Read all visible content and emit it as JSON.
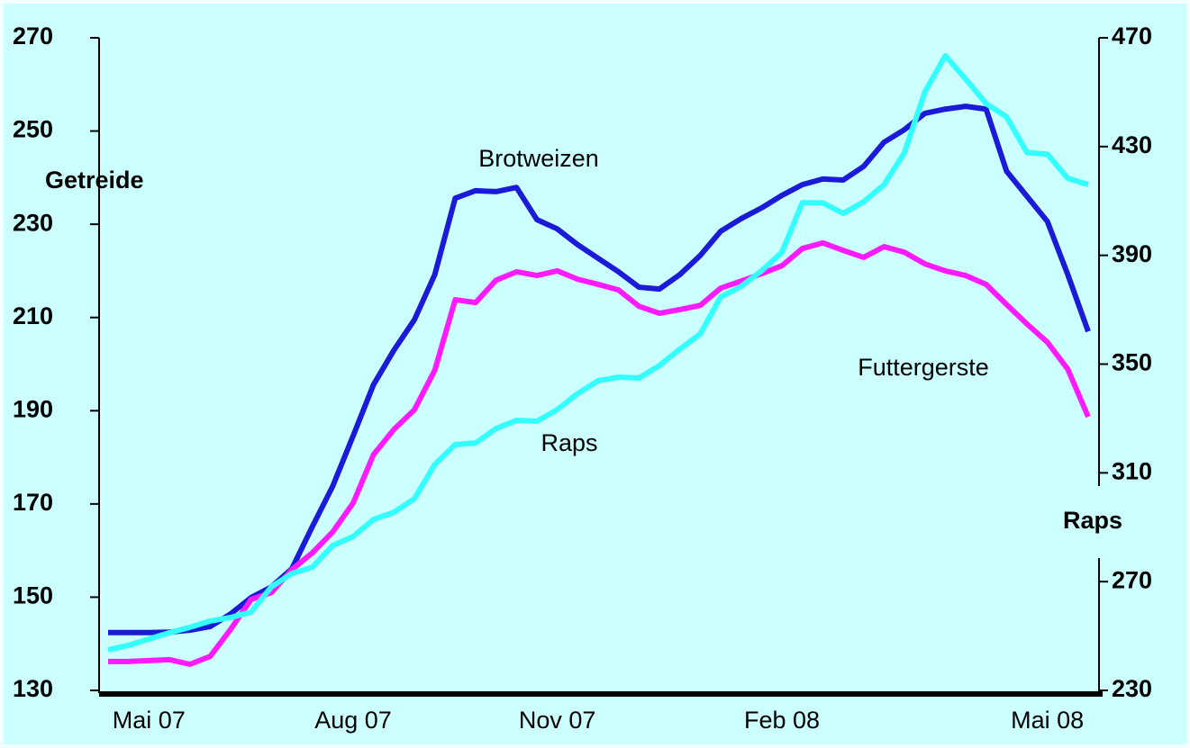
{
  "chart_data": {
    "type": "line",
    "y_label": "Getreide",
    "y2_label": "Raps",
    "categories": [
      null,
      null,
      "Mai 07",
      null,
      null,
      null,
      null,
      null,
      null,
      null,
      null,
      null,
      "Aug 07",
      null,
      null,
      null,
      null,
      null,
      null,
      null,
      null,
      null,
      "Nov 07",
      null,
      null,
      null,
      null,
      null,
      null,
      null,
      null,
      null,
      null,
      "Feb 08",
      null,
      null,
      null,
      null,
      null,
      null,
      null,
      null,
      null,
      null,
      null,
      null,
      "Mai 08",
      null,
      null
    ],
    "series": [
      {
        "name": "Brotweizen",
        "color": "#1a1ad8",
        "values": [
          142.4,
          142.4,
          142.4,
          142.5,
          142.9,
          143.7,
          146.4,
          149.9,
          152.2,
          156.1,
          165.1,
          173.8,
          184.6,
          195.6,
          203,
          209.5,
          219.2,
          235.6,
          237.2,
          237,
          237.9,
          231,
          229,
          225.6,
          222.7,
          219.8,
          216.5,
          216.1,
          219.2,
          223.3,
          228.5,
          231.2,
          233.5,
          236.2,
          238.5,
          239.7,
          239.5,
          242.4,
          247.6,
          250.3,
          253.8,
          254.7,
          255.3,
          254.7,
          241.4,
          236,
          230.6,
          219.2,
          207
        ]
      },
      {
        "name": "Futtergerste",
        "color": "#ff1aff",
        "values": [
          136.2,
          136.2,
          136.4,
          136.6,
          135.6,
          137.3,
          143.1,
          149.5,
          151,
          155.9,
          159.5,
          164,
          170.2,
          180.6,
          186,
          190.2,
          198.7,
          213.8,
          213.2,
          218,
          219.8,
          219,
          220,
          218.2,
          217.1,
          215.9,
          212.4,
          210.9,
          211.7,
          212.6,
          216.3,
          217.8,
          219.4,
          221.1,
          224.8,
          226,
          224.4,
          222.9,
          225.2,
          224,
          221.5,
          220,
          219,
          217.1,
          212.8,
          208.6,
          204.7,
          198.9,
          188.7
        ]
      },
      {
        "name": "Raps",
        "color": "#33ffff",
        "axis": "y2",
        "values": [
          244.9,
          246.6,
          248.9,
          251.2,
          253.2,
          255.5,
          256.8,
          258.8,
          268.1,
          273,
          275.3,
          283.3,
          286.6,
          292.9,
          295.5,
          300.5,
          313.1,
          320.4,
          321,
          326.3,
          329.3,
          329,
          333.3,
          339.2,
          343.9,
          345.2,
          344.9,
          349.5,
          355.5,
          361.1,
          374.7,
          378.6,
          384.3,
          391.2,
          409.4,
          409.3,
          405.4,
          409.7,
          416,
          427.8,
          450.1,
          463.4,
          454.8,
          445.8,
          440.9,
          427.8,
          427.2,
          418.3,
          416
        ]
      }
    ],
    "ylim": [
      130,
      270
    ],
    "yticks": [
      130,
      150,
      170,
      190,
      210,
      230,
      250,
      270
    ],
    "y2lim": [
      230,
      470
    ],
    "y2ticks": [
      230,
      270,
      310,
      350,
      390,
      430,
      470
    ]
  }
}
